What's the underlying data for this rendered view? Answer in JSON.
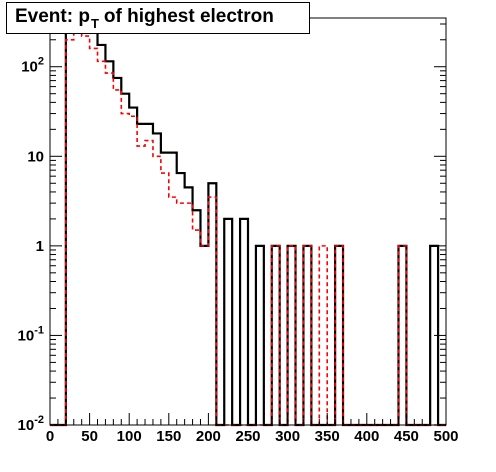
{
  "title": {
    "prefix": "Event: p",
    "subscript": "T",
    "suffix": "of highest electron"
  },
  "chart_data": {
    "type": "histogram",
    "x_ticks": [
      "0",
      "50",
      "100",
      "150",
      "200",
      "250",
      "300",
      "350",
      "400",
      "450",
      "500"
    ],
    "y_ticks": [
      {
        "mantissa": "10",
        "exp": "-2",
        "value": 0.01
      },
      {
        "mantissa": "10",
        "exp": "-1",
        "value": 0.1
      },
      {
        "mantissa": "1",
        "exp": "",
        "value": 1
      },
      {
        "mantissa": "10",
        "exp": "",
        "value": 10
      },
      {
        "mantissa": "10",
        "exp": "2",
        "value": 100
      }
    ],
    "xlim": [
      0,
      500
    ],
    "ylim": [
      0.01,
      350
    ],
    "log_y": true,
    "bin_width": 10,
    "series": [
      {
        "color": "#000000",
        "style": "solid",
        "values": [
          0,
          0,
          330,
          340,
          320,
          260,
          175,
          115,
          75,
          50,
          35,
          23,
          23,
          18,
          11,
          11,
          6.5,
          4.5,
          2.5,
          1,
          5,
          0,
          2,
          0,
          2,
          0,
          1,
          0,
          1,
          0,
          1,
          0,
          1,
          0,
          0,
          0,
          1,
          0,
          0,
          0,
          0,
          0,
          0,
          0,
          1,
          0,
          0,
          0,
          1,
          0
        ]
      },
      {
        "color": "#ff0000",
        "style": "dashed",
        "values": [
          0,
          0,
          200,
          250,
          220,
          160,
          115,
          85,
          55,
          30,
          28,
          13,
          15,
          10,
          6.5,
          3.5,
          3,
          3,
          1.5,
          1,
          3.5,
          0,
          0,
          0,
          0,
          0,
          0,
          0,
          1,
          0,
          1,
          0,
          1,
          0,
          1,
          0,
          1,
          0,
          0,
          0,
          0,
          0,
          0,
          0,
          1,
          0,
          0,
          0,
          0,
          0
        ]
      }
    ]
  }
}
